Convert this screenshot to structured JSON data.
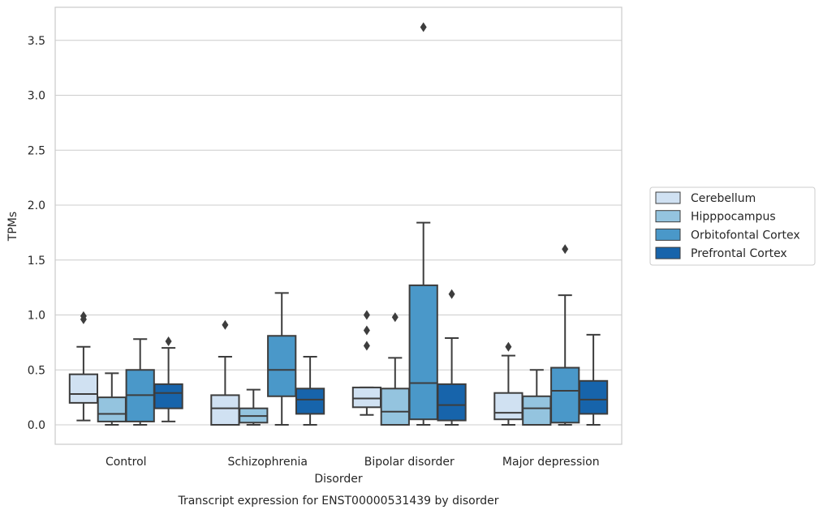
{
  "chart_data": {
    "type": "box",
    "title": "",
    "caption": "Transcript expression for ENST00000531439 by disorder",
    "xlabel": "Disorder",
    "ylabel": "TPMs",
    "ylim": [
      -0.17,
      3.78
    ],
    "yticks": [
      "0.0",
      "0.5",
      "1.0",
      "1.5",
      "2.0",
      "2.5",
      "3.0",
      "3.5"
    ],
    "grid": "horizontal",
    "legend_position": "right",
    "categories": [
      "Control",
      "Schizophrenia",
      "Bipolar disorder",
      "Major depression"
    ],
    "series": [
      {
        "name": "Cerebellum",
        "color": "#d0e1f2",
        "boxes": [
          {
            "whislo": 0.04,
            "q1": 0.2,
            "med": 0.28,
            "q3": 0.46,
            "whishi": 0.71,
            "fliers": [
              0.96,
              0.99
            ]
          },
          {
            "whislo": 0.0,
            "q1": 0.0,
            "med": 0.15,
            "q3": 0.27,
            "whishi": 0.62,
            "fliers": [
              0.91
            ]
          },
          {
            "whislo": 0.09,
            "q1": 0.16,
            "med": 0.24,
            "q3": 0.34,
            "whishi": 0.34,
            "fliers": [
              0.72,
              0.86,
              1.0
            ]
          },
          {
            "whislo": 0.0,
            "q1": 0.05,
            "med": 0.11,
            "q3": 0.29,
            "whishi": 0.63,
            "fliers": [
              0.71
            ]
          }
        ]
      },
      {
        "name": "Hipppocampus",
        "color": "#94c4df",
        "boxes": [
          {
            "whislo": 0.0,
            "q1": 0.03,
            "med": 0.1,
            "q3": 0.25,
            "whishi": 0.47,
            "fliers": []
          },
          {
            "whislo": 0.0,
            "q1": 0.02,
            "med": 0.08,
            "q3": 0.15,
            "whishi": 0.32,
            "fliers": []
          },
          {
            "whislo": 0.0,
            "q1": 0.0,
            "med": 0.12,
            "q3": 0.33,
            "whishi": 0.61,
            "fliers": [
              0.98
            ]
          },
          {
            "whislo": 0.0,
            "q1": 0.0,
            "med": 0.15,
            "q3": 0.26,
            "whishi": 0.5,
            "fliers": []
          }
        ]
      },
      {
        "name": "Orbitofontal Cortex",
        "color": "#4a98c9",
        "boxes": [
          {
            "whislo": 0.0,
            "q1": 0.03,
            "med": 0.27,
            "q3": 0.5,
            "whishi": 0.78,
            "fliers": []
          },
          {
            "whislo": 0.0,
            "q1": 0.26,
            "med": 0.5,
            "q3": 0.81,
            "whishi": 1.2,
            "fliers": []
          },
          {
            "whislo": 0.0,
            "q1": 0.05,
            "med": 0.38,
            "q3": 1.27,
            "whishi": 1.84,
            "fliers": [
              3.62
            ]
          },
          {
            "whislo": 0.0,
            "q1": 0.02,
            "med": 0.31,
            "q3": 0.52,
            "whishi": 1.18,
            "fliers": [
              1.6
            ]
          }
        ]
      },
      {
        "name": "Prefrontal Cortex",
        "color": "#1764ab",
        "boxes": [
          {
            "whislo": 0.03,
            "q1": 0.15,
            "med": 0.29,
            "q3": 0.37,
            "whishi": 0.7,
            "fliers": [
              0.76
            ]
          },
          {
            "whislo": 0.0,
            "q1": 0.1,
            "med": 0.23,
            "q3": 0.33,
            "whishi": 0.62,
            "fliers": []
          },
          {
            "whislo": 0.0,
            "q1": 0.04,
            "med": 0.18,
            "q3": 0.37,
            "whishi": 0.79,
            "fliers": [
              1.19
            ]
          },
          {
            "whislo": 0.0,
            "q1": 0.1,
            "med": 0.23,
            "q3": 0.4,
            "whishi": 0.82,
            "fliers": []
          }
        ]
      }
    ]
  }
}
